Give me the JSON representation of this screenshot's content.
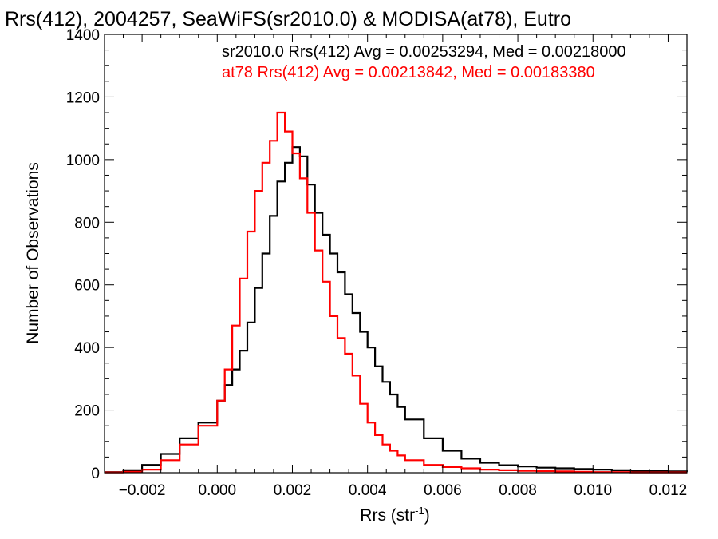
{
  "chart_data": {
    "type": "line",
    "title": "Rrs(412), 2004257, SeaWiFS(sr2010.0) & MODISA(at78), Eutro",
    "xlabel": "Rrs (str",
    "xlabel_sup": "-1",
    "xlabel_end": ")",
    "ylabel": "Number of Observations",
    "xlim": [
      -0.003,
      0.0125
    ],
    "ylim": [
      0,
      1400
    ],
    "grid": false,
    "xticks": [
      -0.002,
      0.0,
      0.002,
      0.004,
      0.006,
      0.008,
      0.01,
      0.012
    ],
    "xtick_labels": [
      "−0.002",
      "0.000",
      "0.002",
      "0.004",
      "0.006",
      "0.008",
      "0.010",
      "0.012"
    ],
    "yticks": [
      0,
      200,
      400,
      600,
      800,
      1000,
      1200,
      1400
    ],
    "ytick_labels": [
      "0",
      "200",
      "400",
      "600",
      "800",
      "1000",
      "1200",
      "1400"
    ],
    "legend_placement": "top-right",
    "series": [
      {
        "name": "sr2010.0",
        "color": "#000000",
        "annotation": "sr2010.0 Rrs(412) Avg = 0.00253294, Med = 0.00218000",
        "x": [
          -0.003,
          -0.0025,
          -0.002,
          -0.0015,
          -0.001,
          -0.0005,
          0.0,
          0.0002,
          0.0004,
          0.0006,
          0.0008,
          0.001,
          0.0012,
          0.0014,
          0.0016,
          0.0018,
          0.002,
          0.0022,
          0.0024,
          0.0026,
          0.0028,
          0.003,
          0.0032,
          0.0034,
          0.0036,
          0.0038,
          0.004,
          0.0042,
          0.0044,
          0.0046,
          0.0048,
          0.005,
          0.0055,
          0.006,
          0.0065,
          0.007,
          0.0075,
          0.008,
          0.0085,
          0.009,
          0.0095,
          0.01,
          0.0105,
          0.011,
          0.0115,
          0.012,
          0.0125
        ],
        "y": [
          2,
          8,
          25,
          60,
          110,
          160,
          230,
          280,
          330,
          390,
          480,
          590,
          700,
          820,
          930,
          990,
          1040,
          1010,
          920,
          830,
          760,
          700,
          640,
          570,
          510,
          450,
          400,
          340,
          290,
          250,
          210,
          170,
          110,
          70,
          45,
          32,
          24,
          20,
          16,
          14,
          12,
          10,
          8,
          6,
          5,
          4,
          3
        ]
      },
      {
        "name": "at78",
        "color": "#ff0000",
        "annotation": "at78 Rrs(412) Avg = 0.00213842, Med = 0.00183380",
        "x": [
          -0.003,
          -0.0025,
          -0.002,
          -0.0015,
          -0.001,
          -0.0005,
          0.0,
          0.0002,
          0.0004,
          0.0006,
          0.0008,
          0.001,
          0.0012,
          0.0014,
          0.0016,
          0.0018,
          0.002,
          0.0022,
          0.0024,
          0.0026,
          0.0028,
          0.003,
          0.0032,
          0.0034,
          0.0036,
          0.0038,
          0.004,
          0.0042,
          0.0044,
          0.0046,
          0.0048,
          0.005,
          0.0055,
          0.006,
          0.0065,
          0.007,
          0.0075,
          0.008,
          0.0085,
          0.009,
          0.0095,
          0.01,
          0.0105,
          0.011,
          0.0115,
          0.012,
          0.0125
        ],
        "y": [
          1,
          3,
          10,
          40,
          90,
          150,
          230,
          330,
          470,
          620,
          770,
          900,
          990,
          1060,
          1150,
          1090,
          1020,
          940,
          830,
          710,
          610,
          500,
          430,
          380,
          310,
          220,
          160,
          120,
          90,
          70,
          55,
          40,
          25,
          18,
          14,
          10,
          8,
          6,
          5,
          4,
          3,
          2,
          2,
          1,
          1,
          1,
          1
        ]
      }
    ]
  }
}
